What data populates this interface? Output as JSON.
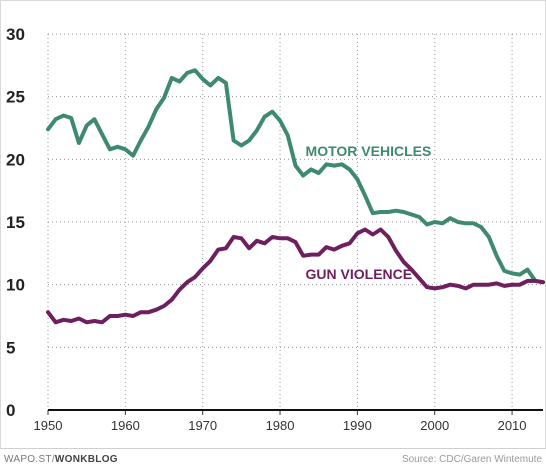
{
  "chart_data": {
    "type": "line",
    "x": [
      1950,
      1951,
      1952,
      1953,
      1954,
      1955,
      1956,
      1957,
      1958,
      1959,
      1960,
      1961,
      1962,
      1963,
      1964,
      1965,
      1966,
      1967,
      1968,
      1969,
      1970,
      1971,
      1972,
      1973,
      1974,
      1975,
      1976,
      1977,
      1978,
      1979,
      1980,
      1981,
      1982,
      1983,
      1984,
      1985,
      1986,
      1987,
      1988,
      1989,
      1990,
      1991,
      1992,
      1993,
      1994,
      1995,
      1996,
      1997,
      1998,
      1999,
      2000,
      2001,
      2002,
      2003,
      2004,
      2005,
      2006,
      2007,
      2008,
      2009,
      2010,
      2011,
      2012,
      2013,
      2014
    ],
    "series": [
      {
        "name": "MOTOR VEHICLES",
        "color": "#3f8a6e",
        "values": [
          22.4,
          23.2,
          23.5,
          23.3,
          21.3,
          22.7,
          23.2,
          22.0,
          20.8,
          21.0,
          20.8,
          20.3,
          21.5,
          22.6,
          24.0,
          24.9,
          26.5,
          26.2,
          26.9,
          27.1,
          26.4,
          25.9,
          26.5,
          26.1,
          21.5,
          21.1,
          21.5,
          22.3,
          23.4,
          23.8,
          23.1,
          21.9,
          19.5,
          18.7,
          19.2,
          18.9,
          19.6,
          19.5,
          19.6,
          19.2,
          18.4,
          17.1,
          15.7,
          15.8,
          15.8,
          15.9,
          15.8,
          15.6,
          15.4,
          14.8,
          15.0,
          14.9,
          15.3,
          15.0,
          14.9,
          14.9,
          14.6,
          13.8,
          12.3,
          11.1,
          10.9,
          10.8,
          11.2,
          10.3,
          10.2
        ]
      },
      {
        "name": "GUN VIOLENCE",
        "color": "#6e1f5e",
        "values": [
          7.8,
          7.0,
          7.2,
          7.1,
          7.3,
          7.0,
          7.1,
          7.0,
          7.5,
          7.5,
          7.6,
          7.5,
          7.8,
          7.8,
          8.0,
          8.3,
          8.8,
          9.6,
          10.2,
          10.6,
          11.3,
          11.9,
          12.8,
          12.9,
          13.8,
          13.7,
          12.9,
          13.5,
          13.3,
          13.8,
          13.7,
          13.7,
          13.4,
          12.3,
          12.4,
          12.4,
          13.0,
          12.8,
          13.1,
          13.3,
          14.1,
          14.4,
          14.0,
          14.4,
          13.8,
          12.7,
          11.8,
          11.2,
          10.5,
          9.8,
          9.7,
          9.8,
          10.0,
          9.9,
          9.7,
          10.0,
          10.0,
          10.0,
          10.1,
          9.9,
          10.0,
          10.0,
          10.3,
          10.3,
          10.2
        ]
      }
    ],
    "xticks": [
      1950,
      1960,
      1970,
      1980,
      1990,
      2000,
      2010
    ],
    "yticks": [
      0,
      5,
      10,
      15,
      20,
      25,
      30
    ],
    "xlim": [
      1950,
      2014
    ],
    "ylim": [
      0,
      30
    ],
    "grid": true,
    "title": "",
    "xlabel": "",
    "ylabel": ""
  },
  "footer": {
    "left_prefix": "WAPO.ST/",
    "left_brand": "WONKBLOG",
    "source": "Source: CDC/Garen Wintemute"
  }
}
